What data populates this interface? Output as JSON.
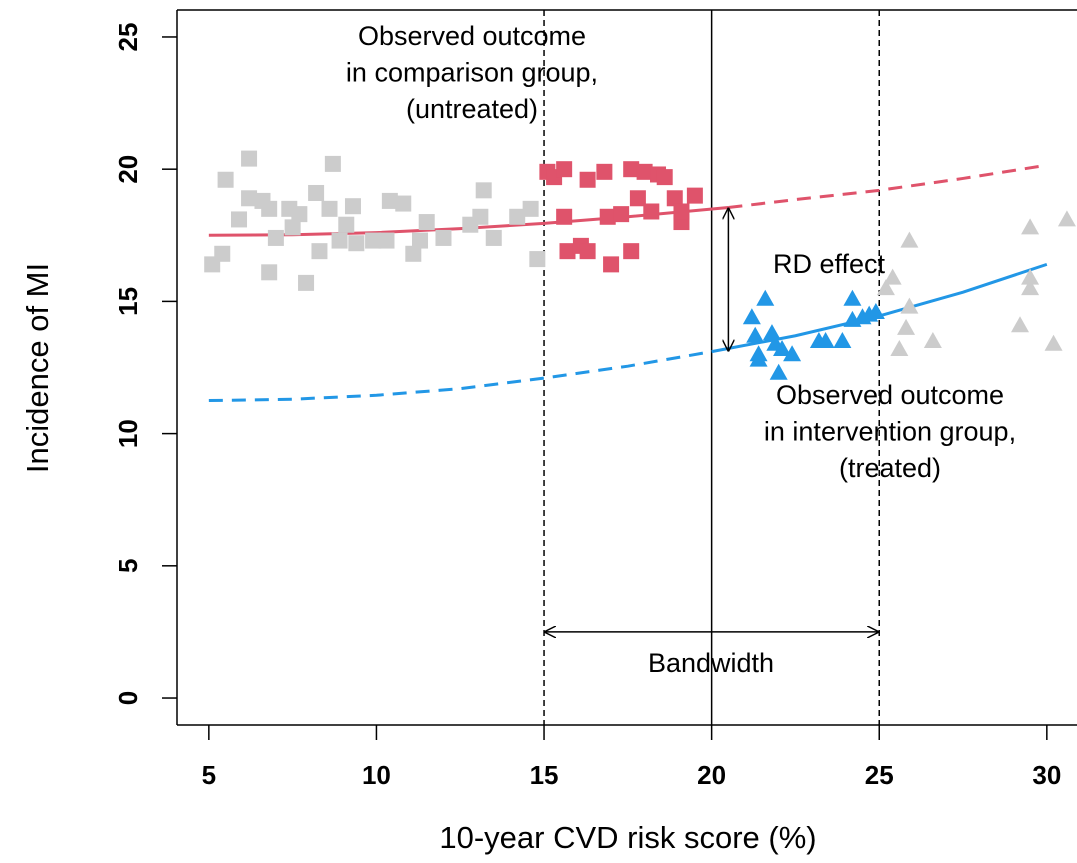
{
  "chart_data": {
    "type": "scatter",
    "xlabel": "10-year CVD risk score (%)",
    "ylabel": "Incidence of MI",
    "xlim": [
      4.05,
      30.9
    ],
    "ylim": [
      -1.02,
      26.02
    ],
    "xticks": [
      5,
      10,
      15,
      20,
      25,
      30
    ],
    "yticks": [
      0,
      5,
      10,
      15,
      20,
      25
    ],
    "series": [
      {
        "color": "#cccccc",
        "marker": "square",
        "x": [
          5.1,
          5.4,
          5.5,
          5.9,
          6.2,
          6.2,
          6.6,
          6.8,
          6.8,
          7.0,
          7.4,
          7.5,
          7.7,
          7.9,
          8.2,
          8.3,
          8.6,
          8.7,
          8.9,
          9.1,
          9.3,
          9.4,
          9.9,
          10.3,
          10.4,
          10.8,
          11.1,
          11.3,
          11.5,
          12.0,
          12.8,
          13.1,
          13.2,
          13.5,
          14.2,
          14.6,
          14.8
        ],
        "y": [
          16.4,
          16.8,
          19.6,
          18.1,
          20.4,
          18.9,
          18.8,
          18.5,
          16.1,
          17.4,
          18.5,
          17.8,
          18.3,
          15.7,
          19.1,
          16.9,
          18.5,
          20.2,
          17.3,
          17.9,
          18.6,
          17.2,
          17.3,
          17.3,
          18.8,
          18.7,
          16.8,
          17.3,
          18.0,
          17.4,
          17.9,
          18.2,
          19.2,
          17.4,
          18.2,
          18.5,
          16.6
        ]
      },
      {
        "color": "#df536b",
        "marker": "square",
        "x": [
          15.1,
          15.3,
          15.6,
          15.6,
          15.7,
          16.1,
          16.3,
          16.3,
          16.8,
          16.9,
          17.0,
          17.3,
          17.6,
          17.6,
          17.8,
          18.0,
          18.2,
          18.4,
          18.6,
          18.9,
          19.1,
          19.1,
          19.5
        ],
        "y": [
          19.9,
          19.7,
          20.0,
          18.2,
          16.9,
          17.1,
          19.6,
          16.9,
          19.9,
          18.2,
          16.4,
          18.3,
          16.9,
          20.0,
          18.9,
          19.9,
          18.4,
          19.8,
          19.7,
          18.9,
          18.0,
          18.4,
          19.0
        ]
      },
      {
        "color": "#2297e6",
        "marker": "triangle",
        "x": [
          21.2,
          21.6,
          21.3,
          21.4,
          21.4,
          21.8,
          21.9,
          22.0,
          22.1,
          22.4,
          23.2,
          23.4,
          23.9,
          24.2,
          24.2,
          24.5,
          24.7,
          24.9
        ],
        "y": [
          14.4,
          15.1,
          13.7,
          13.0,
          12.8,
          13.8,
          13.4,
          12.3,
          13.2,
          13.0,
          13.5,
          13.5,
          13.5,
          15.1,
          14.3,
          14.4,
          14.5,
          14.6
        ]
      },
      {
        "color": "#cccccc",
        "marker": "triangle",
        "x": [
          25.2,
          25.4,
          25.6,
          25.8,
          25.9,
          25.9,
          26.6,
          29.2,
          29.5,
          29.5,
          29.5,
          30.2,
          30.6
        ],
        "y": [
          15.5,
          15.9,
          13.2,
          14.0,
          14.8,
          17.3,
          13.5,
          14.1,
          17.8,
          15.5,
          15.9,
          13.4,
          18.1
        ]
      }
    ],
    "lines": [
      {
        "color": "#df536b",
        "dash": false,
        "x": [
          5,
          7.5,
          10,
          12.5,
          15,
          17.5,
          20.5
        ],
        "y": [
          17.5,
          17.52,
          17.6,
          17.75,
          17.95,
          18.2,
          18.55
        ]
      },
      {
        "color": "#df536b",
        "dash": true,
        "x": [
          20.5,
          22.5,
          25,
          27.5,
          30
        ],
        "y": [
          18.55,
          18.85,
          19.2,
          19.65,
          20.15
        ]
      },
      {
        "color": "#2297e6",
        "dash": true,
        "x": [
          5,
          7.5,
          10,
          12.5,
          15,
          17.5,
          20
        ],
        "y": [
          11.25,
          11.3,
          11.45,
          11.7,
          12.1,
          12.55,
          13.1
        ]
      },
      {
        "color": "#2297e6",
        "dash": false,
        "x": [
          20,
          22.5,
          25,
          27.5,
          30
        ],
        "y": [
          13.1,
          13.7,
          14.45,
          15.35,
          16.4
        ]
      }
    ],
    "reference_lines": [
      {
        "x": 15,
        "dash": true
      },
      {
        "x": 20,
        "dash": false
      },
      {
        "x": 25,
        "dash": true
      }
    ],
    "rd_effect": {
      "label": "RD effect",
      "x": 20.5,
      "from": 18.55,
      "to": 13.1
    },
    "bandwidth": {
      "label": "Bandwidth",
      "from": 15,
      "to": 25,
      "y": 2.5
    },
    "annotations": [
      [
        "Observed outcome",
        "in comparison group,",
        "(untreated)"
      ],
      [
        "Observed outcome",
        "in intervention group,",
        "(treated)"
      ]
    ]
  }
}
